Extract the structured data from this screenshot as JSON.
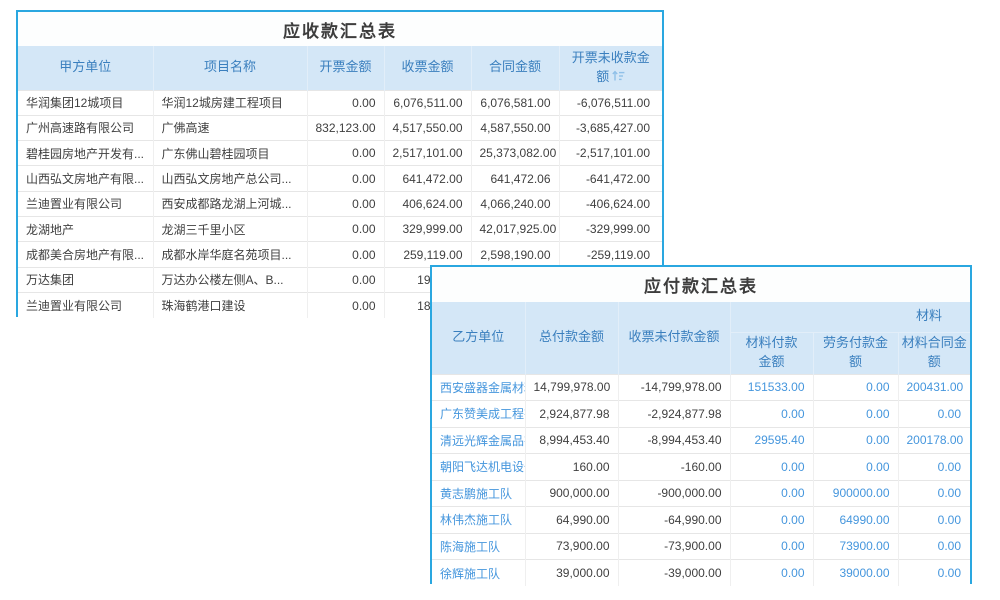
{
  "colors": {
    "panel_border": "#2aa7e0",
    "header_background": "#d4e7f7",
    "header_text": "#3a7fbe",
    "link_blue": "#4596dd",
    "body_text": "#3f3f3f",
    "title_text": "#3d3d3d",
    "page_background": "#ffffff"
  },
  "receivables": {
    "title": "应收款汇总表",
    "columns": [
      {
        "label": "甲方单位",
        "align": "left"
      },
      {
        "label": "项目名称",
        "align": "left"
      },
      {
        "label": "开票金额",
        "align": "right"
      },
      {
        "label": "收票金额",
        "align": "right"
      },
      {
        "label": "合同金额",
        "align": "right"
      },
      {
        "label": "开票未收款金\n额",
        "align": "right",
        "sort_icon": "sort-ascending"
      }
    ],
    "rows": [
      [
        "华润集团12城项目",
        "华润12城房建工程项目",
        "0.00",
        "6,076,511.00",
        "6,076,581.00",
        "-6,076,511.00"
      ],
      [
        "广州高速路有限公司",
        "广佛高速",
        "832,123.00",
        "4,517,550.00",
        "4,587,550.00",
        "-3,685,427.00"
      ],
      [
        "碧桂园房地产开发有...",
        "广东佛山碧桂园项目",
        "0.00",
        "2,517,101.00",
        "25,373,082.00",
        "-2,517,101.00"
      ],
      [
        "山西弘文房地产有限...",
        "山西弘文房地产总公司...",
        "0.00",
        "641,472.00",
        "641,472.06",
        "-641,472.00"
      ],
      [
        "兰迪置业有限公司",
        "西安成都路龙湖上河城...",
        "0.00",
        "406,624.00",
        "4,066,240.00",
        "-406,624.00"
      ],
      [
        "龙湖地产",
        "龙湖三千里小区",
        "0.00",
        "329,999.00",
        "42,017,925.00",
        "-329,999.00"
      ],
      [
        "成都美合房地产有限...",
        "成都水岸华庭名苑项目...",
        "0.00",
        "259,119.00",
        "2,598,190.00",
        "-259,119.00"
      ],
      [
        "万达集团",
        "万达办公楼左侧A、B...",
        "0.00",
        "19",
        "",
        ""
      ],
      [
        "兰迪置业有限公司",
        "珠海鹤港口建设",
        "0.00",
        "18",
        "",
        ""
      ]
    ]
  },
  "payables": {
    "title": "应付款汇总表",
    "group_label": "材料",
    "columns": [
      {
        "label": "乙方单位",
        "align": "left"
      },
      {
        "label": "总付款金额",
        "align": "right"
      },
      {
        "label": "收票未付款金额",
        "align": "right"
      },
      {
        "label": "材料付款\n金额",
        "align": "right",
        "group": "材料"
      },
      {
        "label": "劳务付款金\n额",
        "align": "right",
        "group": "材料"
      },
      {
        "label": "材料合同金\n额",
        "align": "right",
        "group": "材料"
      }
    ],
    "rows": [
      [
        "西安盛器金属材料有",
        "14,799,978.00",
        "-14,799,978.00",
        "151533.00",
        "0.00",
        "200431.00"
      ],
      [
        "广东赞美成工程有限",
        "2,924,877.98",
        "-2,924,877.98",
        "0.00",
        "0.00",
        "0.00"
      ],
      [
        "清远光辉金属品有限",
        "8,994,453.40",
        "-8,994,453.40",
        "29595.40",
        "0.00",
        "200178.00"
      ],
      [
        "朝阳飞达机电设备有",
        "160.00",
        "-160.00",
        "0.00",
        "0.00",
        "0.00"
      ],
      [
        "黄志鹏施工队",
        "900,000.00",
        "-900,000.00",
        "0.00",
        "900000.00",
        "0.00"
      ],
      [
        "林伟杰施工队",
        "64,990.00",
        "-64,990.00",
        "0.00",
        "64990.00",
        "0.00"
      ],
      [
        "陈海施工队",
        "73,900.00",
        "-73,900.00",
        "0.00",
        "73900.00",
        "0.00"
      ],
      [
        "徐辉施工队",
        "39,000.00",
        "-39,000.00",
        "0.00",
        "39000.00",
        "0.00"
      ]
    ]
  }
}
